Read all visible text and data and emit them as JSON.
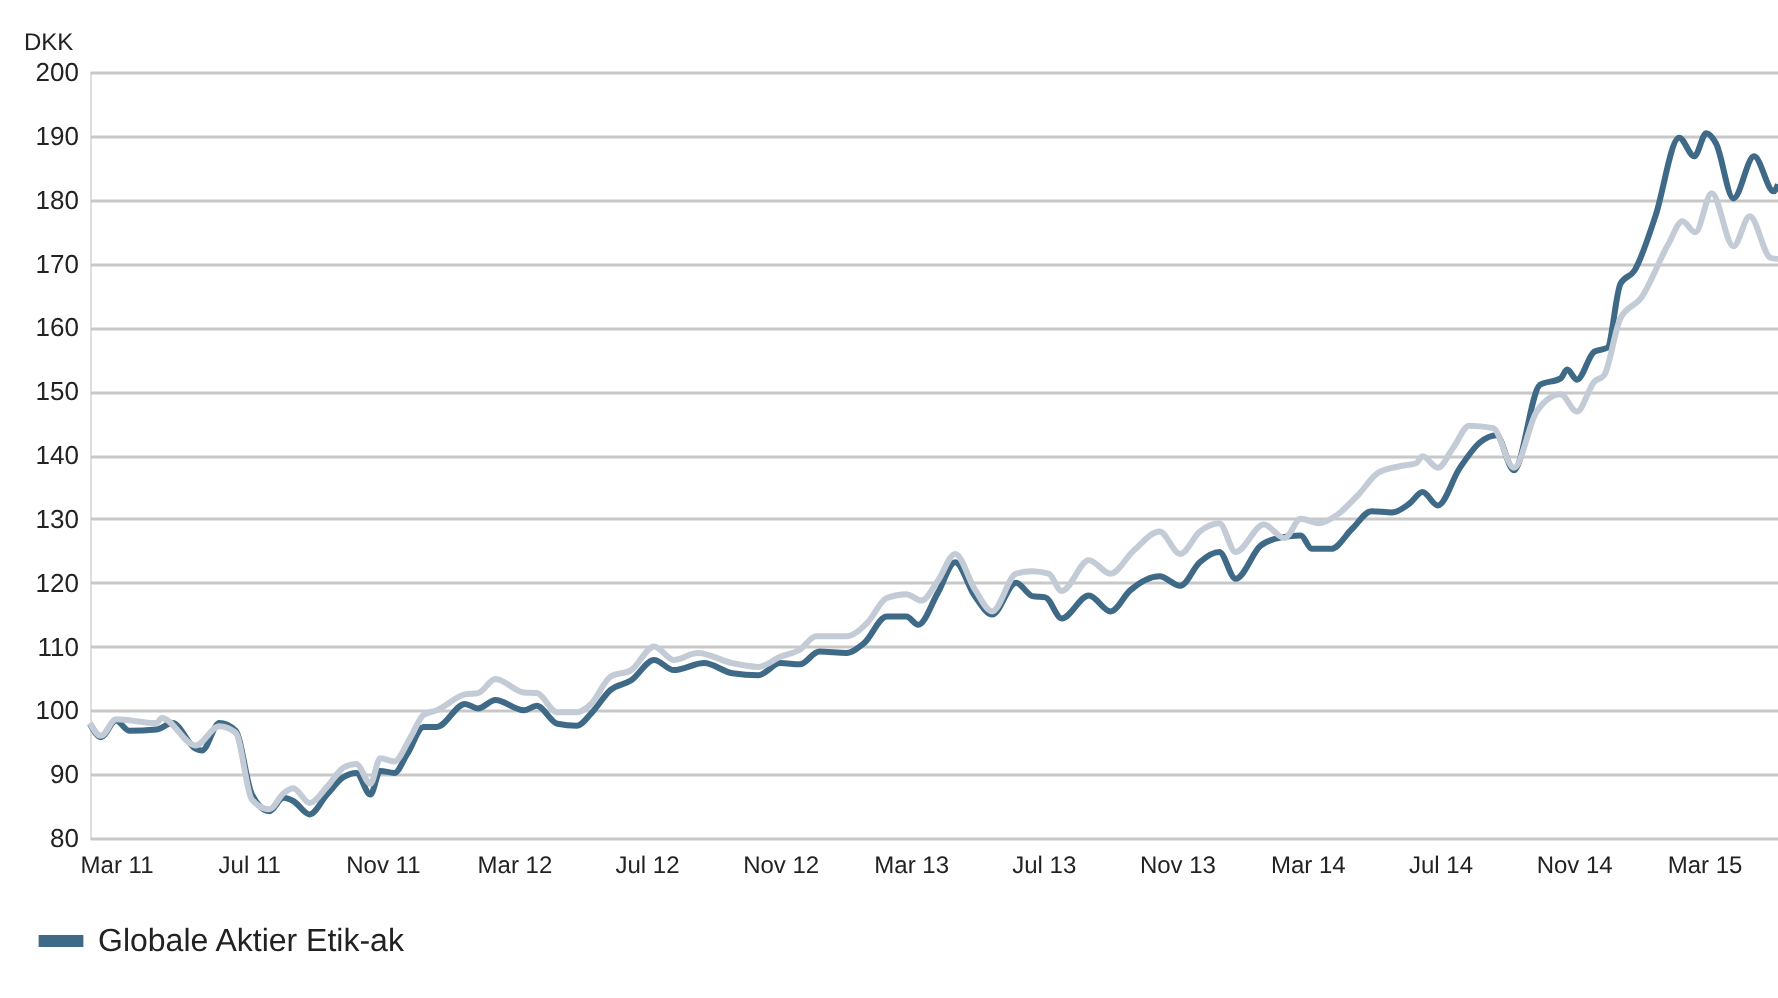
{
  "chart_data": {
    "type": "line",
    "ylabel": "DKK",
    "ylim": [
      80,
      200
    ],
    "yticks": [
      80,
      90,
      100,
      110,
      120,
      130,
      140,
      150,
      160,
      170,
      180,
      190,
      200
    ],
    "grid": "y",
    "legend": "bottom left",
    "line_style": "solid",
    "marker": "none",
    "xlim": [
      "2011-02-05",
      "2015-05-08"
    ],
    "xticks": [
      {
        "value": "2011-03-01",
        "label": "Mar 11"
      },
      {
        "value": "2011-07-01",
        "label": "Jul 11"
      },
      {
        "value": "2011-11-01",
        "label": "Nov 11"
      },
      {
        "value": "2012-03-01",
        "label": "Mar 12"
      },
      {
        "value": "2012-07-01",
        "label": "Jul 12"
      },
      {
        "value": "2012-11-01",
        "label": "Nov 12"
      },
      {
        "value": "2013-03-01",
        "label": "Mar 13"
      },
      {
        "value": "2013-07-01",
        "label": "Jul 13"
      },
      {
        "value": "2013-11-01",
        "label": "Nov 13"
      },
      {
        "value": "2014-03-01",
        "label": "Mar 14"
      },
      {
        "value": "2014-07-01",
        "label": "Jul 14"
      },
      {
        "value": "2014-11-01",
        "label": "Nov 14"
      },
      {
        "value": "2015-03-01",
        "label": "Mar 15"
      }
    ],
    "series": [
      {
        "color": "#c3ccd6",
        "x": [
          "2011-02-05",
          "2011-02-15",
          "2011-03-01",
          "2011-04-07",
          "2011-04-12",
          "2011-05-13",
          "2011-06-04",
          "2011-06-19",
          "2011-07-04",
          "2011-07-20",
          "2011-08-02",
          "2011-08-11",
          "2011-08-26",
          "2011-09-11",
          "2011-09-26",
          "2011-10-08",
          "2011-10-21",
          "2011-10-30",
          "2011-11-12",
          "2011-11-26",
          "2011-12-09",
          "2011-12-21",
          "2012-01-16",
          "2012-01-28",
          "2012-02-13",
          "2012-03-10",
          "2012-03-22",
          "2012-04-10",
          "2012-04-28",
          "2012-05-11",
          "2012-05-29",
          "2012-06-17",
          "2012-07-08",
          "2012-07-26",
          "2012-08-17",
          "2012-09-18",
          "2012-10-12",
          "2012-11-01",
          "2012-11-19",
          "2012-12-04",
          "2013-01-01",
          "2013-01-20",
          "2013-02-07",
          "2013-02-25",
          "2013-03-11",
          "2013-03-26",
          "2013-04-11",
          "2013-04-29",
          "2013-05-15",
          "2013-06-06",
          "2013-06-21",
          "2013-07-06",
          "2013-07-18",
          "2013-08-12",
          "2013-09-01",
          "2013-09-22",
          "2013-10-16",
          "2013-11-04",
          "2013-11-22",
          "2013-12-10",
          "2013-12-25",
          "2014-01-20",
          "2014-02-08",
          "2014-02-23",
          "2014-03-11",
          "2014-03-29",
          "2014-04-17",
          "2014-05-05",
          "2014-05-24",
          "2014-06-09",
          "2014-06-15",
          "2014-06-29",
          "2014-07-13",
          "2014-07-28",
          "2014-08-19",
          "2014-09-07",
          "2014-09-28",
          "2014-10-20",
          "2014-11-04",
          "2014-11-20",
          "2014-11-29",
          "2014-12-14",
          "2015-01-02",
          "2015-01-27",
          "2015-02-09",
          "2015-02-21",
          "2015-03-08",
          "2015-03-28",
          "2015-04-12",
          "2015-05-01",
          "2015-05-08"
        ],
        "values": [
          98,
          96,
          98.6,
          98,
          98.8,
          94.5,
          97.5,
          96.5,
          86,
          84.5,
          87,
          87.8,
          85.5,
          88,
          91,
          91.6,
          88.5,
          92.5,
          92,
          95.5,
          99.3,
          100,
          102.5,
          102.7,
          104.9,
          102.8,
          102.7,
          99.7,
          99.7,
          101,
          105.3,
          106.3,
          110,
          107.9,
          109,
          107.4,
          106.8,
          108.4,
          109.5,
          111.6,
          111.6,
          113.7,
          117.6,
          118.2,
          117.2,
          120.3,
          124.5,
          119,
          115.5,
          121.4,
          121.8,
          121.4,
          118.7,
          123.5,
          121.4,
          125,
          128,
          124.5,
          128,
          129.3,
          124.8,
          129.1,
          127,
          130,
          129.3,
          130.7,
          133.8,
          137.2,
          138.2,
          138.7,
          139.8,
          138,
          141.1,
          144.6,
          144.2,
          138,
          146.8,
          149.5,
          146.8,
          151.5,
          152.5,
          161.4,
          164.6,
          173,
          176.6,
          174.9,
          181,
          172.7,
          177.4,
          170.9,
          170.7
        ]
      },
      {
        "name": "Globale Aktier Etik-ak",
        "color": "#3f6a87",
        "x": [
          "2011-02-05",
          "2011-02-15",
          "2011-03-01",
          "2011-03-13",
          "2011-04-07",
          "2011-04-22",
          "2011-05-13",
          "2011-05-19",
          "2011-06-04",
          "2011-06-19",
          "2011-07-04",
          "2011-07-20",
          "2011-08-02",
          "2011-08-11",
          "2011-08-26",
          "2011-09-11",
          "2011-09-26",
          "2011-10-08",
          "2011-10-21",
          "2011-10-30",
          "2011-11-12",
          "2011-11-24",
          "2011-12-09",
          "2011-12-21",
          "2012-01-16",
          "2012-01-28",
          "2012-02-13",
          "2012-03-10",
          "2012-03-22",
          "2012-04-10",
          "2012-04-28",
          "2012-05-11",
          "2012-05-29",
          "2012-06-17",
          "2012-07-08",
          "2012-07-26",
          "2012-08-23",
          "2012-09-18",
          "2012-10-12",
          "2012-11-01",
          "2012-11-19",
          "2012-12-07",
          "2013-01-01",
          "2013-01-17",
          "2013-02-07",
          "2013-02-25",
          "2013-03-08",
          "2013-03-26",
          "2013-04-11",
          "2013-04-29",
          "2013-05-15",
          "2013-06-06",
          "2013-06-21",
          "2013-07-03",
          "2013-07-18",
          "2013-08-12",
          "2013-09-01",
          "2013-09-19",
          "2013-10-16",
          "2013-11-04",
          "2013-11-22",
          "2013-12-10",
          "2013-12-25",
          "2014-01-17",
          "2014-02-05",
          "2014-02-23",
          "2014-03-05",
          "2014-03-23",
          "2014-04-11",
          "2014-04-29",
          "2014-05-18",
          "2014-06-03",
          "2014-06-15",
          "2014-06-29",
          "2014-07-19",
          "2014-08-07",
          "2014-08-22",
          "2014-09-07",
          "2014-10-01",
          "2014-10-20",
          "2014-10-26",
          "2014-11-04",
          "2014-11-20",
          "2014-12-02",
          "2014-12-14",
          "2014-12-27",
          "2015-01-15",
          "2015-02-06",
          "2015-02-20",
          "2015-03-03",
          "2015-03-12",
          "2015-03-28",
          "2015-04-16",
          "2015-05-04",
          "2015-05-08"
        ],
        "values": [
          97.9,
          95.8,
          98.4,
          96.8,
          97,
          98,
          94,
          93.7,
          98,
          96.8,
          86.8,
          84.2,
          86.3,
          85.8,
          83.7,
          86.8,
          89.5,
          90.2,
          86.8,
          90.5,
          90.2,
          93.2,
          97.4,
          97.4,
          101,
          100.3,
          101.6,
          100,
          100.7,
          97.9,
          97.6,
          99.5,
          103.2,
          104.7,
          107.9,
          106.3,
          107.4,
          105.8,
          105.5,
          107.4,
          107.2,
          109.2,
          109,
          110.5,
          114.7,
          114.7,
          113.4,
          118.4,
          123.2,
          117.9,
          115,
          120,
          117.9,
          117.7,
          114.4,
          118,
          115.5,
          118.8,
          121,
          119.5,
          123.2,
          124.8,
          120.6,
          125.8,
          127.1,
          127.4,
          125.3,
          125.3,
          128.4,
          131.2,
          131,
          132.4,
          134.2,
          132.1,
          137.9,
          142,
          143.1,
          137.6,
          151,
          152,
          153.4,
          151.8,
          156.2,
          156.8,
          166.8,
          168.9,
          177.3,
          189.7,
          186.8,
          190.4,
          188.8,
          180.2,
          186.8,
          181.3,
          182.4
        ]
      }
    ]
  }
}
